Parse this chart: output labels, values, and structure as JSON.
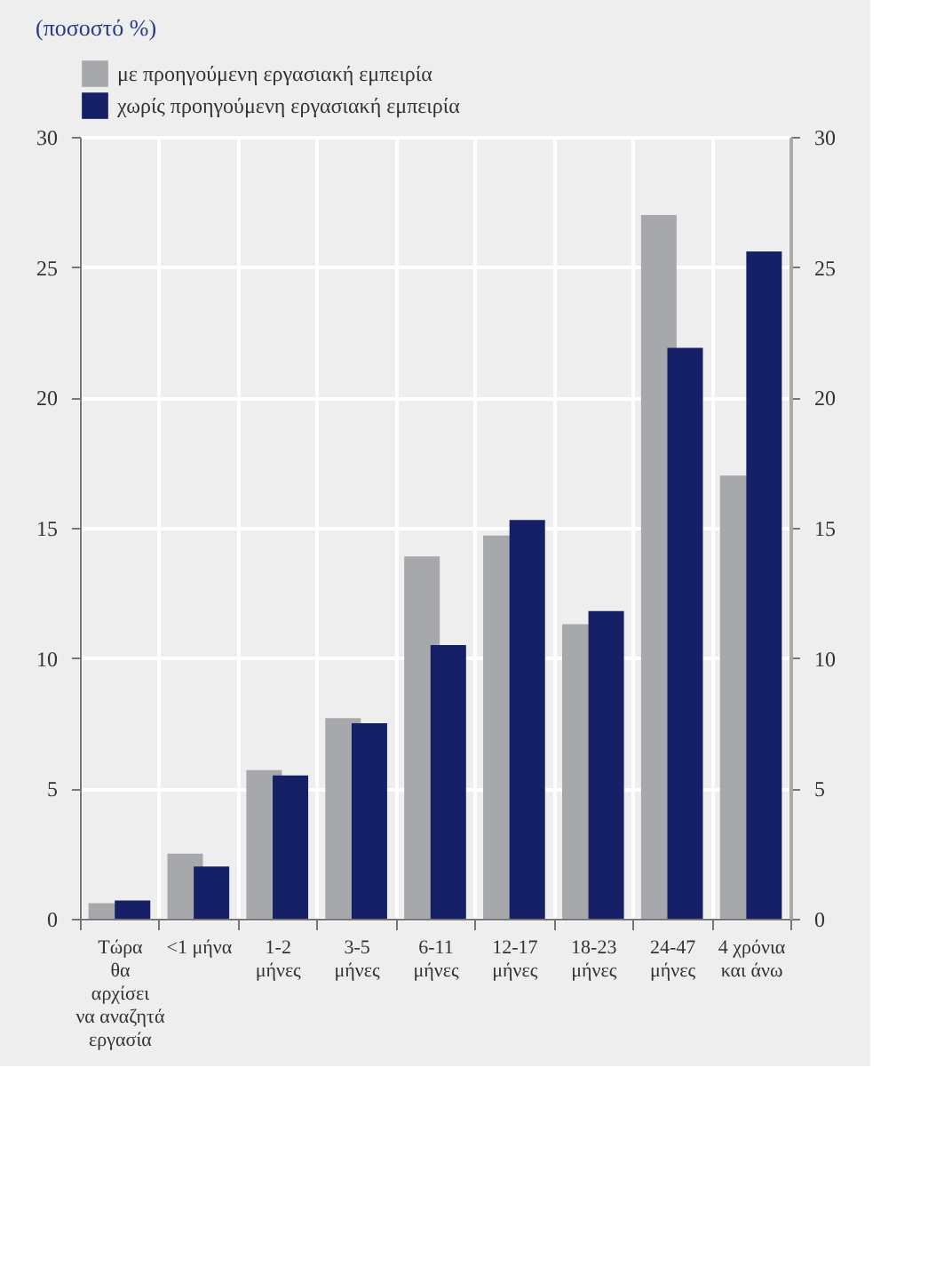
{
  "chart_data": {
    "type": "bar",
    "title": "(ποσοστό %)",
    "categories": [
      "Τώρα\nθα\nαρχίσει\nνα αναζητά\nεργασία",
      "<1 μήνα",
      "1-2\nμήνες",
      "3-5\nμήνες",
      "6-11\nμήνες",
      "12-17\nμήνες",
      "18-23\nμήνες",
      "24-47\nμήνες",
      "4 χρόνια\nκαι άνω"
    ],
    "series": [
      {
        "name": "με προηγούμενη εργασιακή εμπειρία",
        "color": "#a7a8ac",
        "values": [
          0.6,
          2.5,
          5.7,
          7.7,
          13.9,
          14.7,
          11.3,
          27.0,
          17.0
        ]
      },
      {
        "name": "χωρίς προηγούμενη εργασιακή εμπειρία",
        "color": "#152066",
        "values": [
          0.7,
          2.0,
          5.5,
          7.5,
          10.5,
          15.3,
          11.8,
          21.9,
          25.6
        ]
      }
    ],
    "ylim": [
      0,
      30
    ],
    "yticks": [
      0,
      5,
      10,
      15,
      20,
      25,
      30
    ],
    "y2lim": [
      0,
      30
    ],
    "y2ticks": [
      0,
      5,
      10,
      15,
      20,
      25,
      30
    ],
    "grid": true,
    "legend": "top left"
  }
}
